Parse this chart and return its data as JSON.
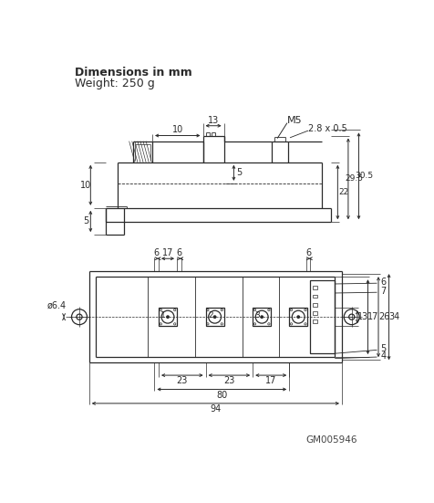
{
  "title_line1": "Dimensions in mm",
  "title_line2": "Weight: 250 g",
  "part_number": "GM005946",
  "bg_color": "#ffffff",
  "lc": "#2a2a2a",
  "figure_width": 4.77,
  "figure_height": 5.51,
  "dpi": 100
}
